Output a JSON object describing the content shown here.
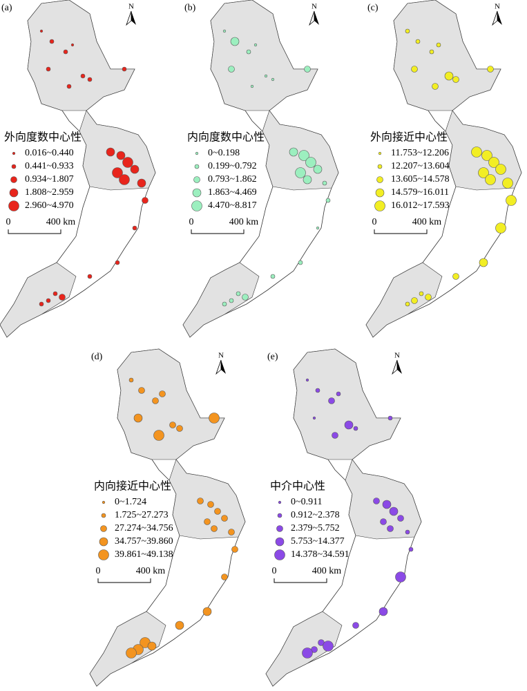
{
  "panels": [
    {
      "label": "(a)",
      "legend_title": "外向度数中心性",
      "classes": [
        "0.016~0.440",
        "0.441~0.933",
        "0.934~1.807",
        "1.808~2.959",
        "2.960~4.970"
      ],
      "color": "#e8251c",
      "scale_start": "0",
      "scale_end": "400 km",
      "north": "N"
    },
    {
      "label": "(b)",
      "legend_title": "内向度数中心性",
      "classes": [
        "0~0.198",
        "0.199~0.792",
        "0.793~1.862",
        "1.863~4.469",
        "4.470~8.817"
      ],
      "color": "#9cefbf",
      "scale_start": "0",
      "scale_end": "400 km",
      "north": "N"
    },
    {
      "label": "(c)",
      "legend_title": "外向接近中心性",
      "classes": [
        "11.753~12.206",
        "12.207~13.604",
        "13.605~14.578",
        "14.579~16.011",
        "16.012~17.593"
      ],
      "color": "#f2ee24",
      "scale_start": "0",
      "scale_end": "400 km",
      "north": "N"
    },
    {
      "label": "(d)",
      "legend_title": "内向接近中心性",
      "classes": [
        "0~1.724",
        "1.725~27.273",
        "27.274~34.756",
        "34.757~39.860",
        "39.861~49.138"
      ],
      "color": "#f39420",
      "scale_start": "0",
      "scale_end": "400 km",
      "north": "N"
    },
    {
      "label": "(e)",
      "legend_title": "中介中心性",
      "classes": [
        "0~0.911",
        "0.912~2.378",
        "2.379~5.752",
        "5.753~14.377",
        "14.378~34.591"
      ],
      "color": "#8b4ae6",
      "scale_start": "0",
      "scale_end": "400 km",
      "north": "N"
    }
  ]
}
